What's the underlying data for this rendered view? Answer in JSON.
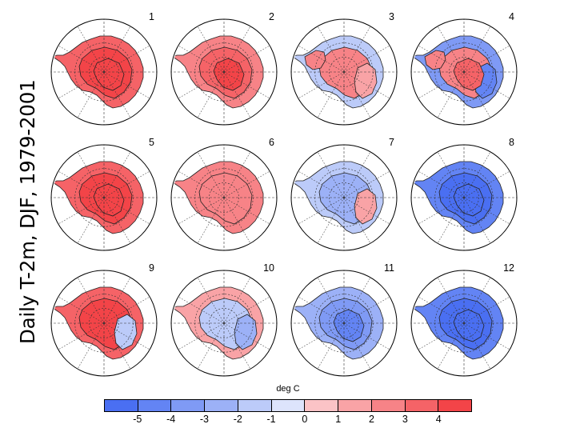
{
  "title": "Daily T-2m, DJF, 1979-2001",
  "colorbar": {
    "label": "deg C",
    "ticks": [
      "-5",
      "-4",
      "-3",
      "-2",
      "-1",
      "0",
      "1",
      "2",
      "3",
      "4"
    ],
    "bins": [
      {
        "range": "< -5",
        "color": "#4a6ff2"
      },
      {
        "range": "-5 to -4",
        "color": "#6384f4"
      },
      {
        "range": "-4 to -3",
        "color": "#7f9af5"
      },
      {
        "range": "-3 to -2",
        "color": "#9cb1f7"
      },
      {
        "range": "-2 to -1",
        "color": "#bccbf9"
      },
      {
        "range": "-1 to 0",
        "color": "#dde4fc"
      },
      {
        "range": "0 to 1",
        "color": "#fbc3c6"
      },
      {
        "range": "1 to 2",
        "color": "#f9a3a6"
      },
      {
        "range": "2 to 3",
        "color": "#f78387"
      },
      {
        "range": "3 to 4",
        "color": "#f56367"
      },
      {
        "range": "> 4",
        "color": "#f34448"
      }
    ]
  },
  "panels": [
    {
      "label": "1",
      "base": 3,
      "center": 4,
      "center2": null,
      "inner": 4
    },
    {
      "label": "2",
      "base": 2,
      "center": 3,
      "center2": null,
      "inner": 4
    },
    {
      "label": "3",
      "base": -1,
      "center": 2,
      "center2": 1,
      "inner": null
    },
    {
      "label": "4",
      "base": -3,
      "center": 2,
      "center2": -4,
      "inner": 3
    },
    {
      "label": "5",
      "base": 3,
      "center": 4,
      "center2": null,
      "inner": 4
    },
    {
      "label": "6",
      "base": 2,
      "center": 2,
      "center2": null,
      "inner": null
    },
    {
      "label": "7",
      "base": -1,
      "center": -2,
      "center2": 1,
      "inner": null
    },
    {
      "label": "8",
      "base": -4,
      "center": -5,
      "center2": null,
      "inner": -5
    },
    {
      "label": "9",
      "base": 3,
      "center": 4,
      "center2": -1,
      "inner": null
    },
    {
      "label": "10",
      "base": 1,
      "center": -1,
      "center2": -2,
      "inner": null
    },
    {
      "label": "11",
      "base": -2,
      "center": -3,
      "center2": null,
      "inner": -4
    },
    {
      "label": "12",
      "base": -4,
      "center": -5,
      "center2": null,
      "inner": -5
    }
  ]
}
